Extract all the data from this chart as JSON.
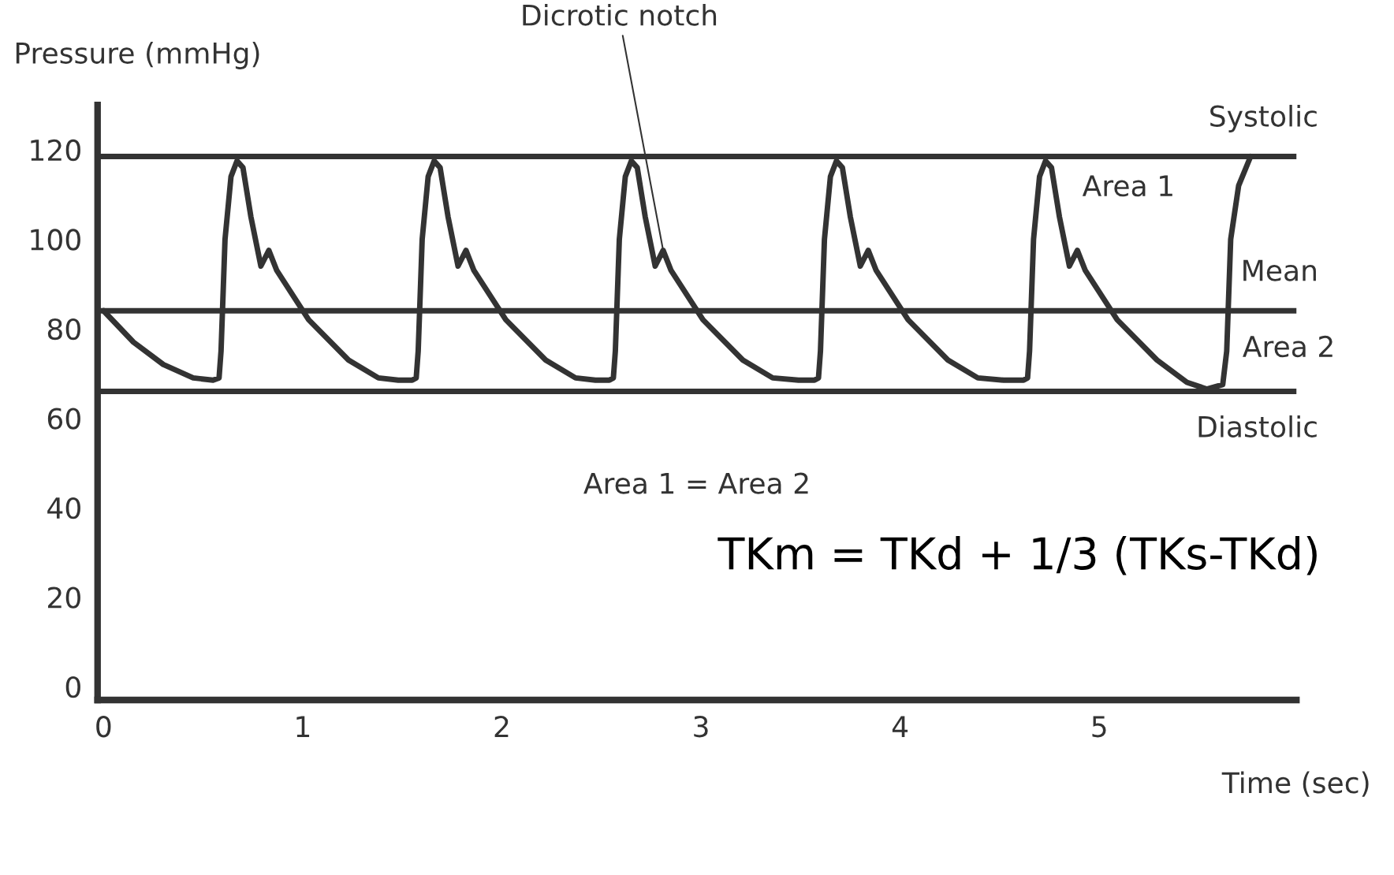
{
  "chart_data": {
    "type": "line",
    "ylabel": "Pressure (mmHg)",
    "xlabel": "Time (sec)",
    "xlim": [
      -0.03,
      5.99
    ],
    "xticks": [
      0,
      1,
      2,
      3,
      4,
      5
    ],
    "ylim": [
      -3,
      130
    ],
    "yticks": [
      0,
      20,
      40,
      60,
      80,
      100,
      120
    ],
    "grid": false,
    "marker": "none",
    "line_style": "solid",
    "series": [
      {
        "color": "#333333",
        "x": [
          0.0,
          0.15,
          0.3,
          0.45,
          0.55,
          0.58,
          0.59,
          0.61,
          0.64,
          0.67,
          0.7,
          0.74,
          0.79,
          0.83,
          0.87,
          1.03,
          1.23,
          1.38,
          1.48,
          1.55,
          1.57,
          1.58,
          1.6,
          1.63,
          1.66,
          1.69,
          1.73,
          1.78,
          1.82,
          1.86,
          2.02,
          2.22,
          2.37,
          2.47,
          2.54,
          2.56,
          2.57,
          2.59,
          2.62,
          2.65,
          2.68,
          2.72,
          2.77,
          2.81,
          2.85,
          3.01,
          3.21,
          3.36,
          3.49,
          3.57,
          3.59,
          3.6,
          3.62,
          3.65,
          3.68,
          3.71,
          3.75,
          3.8,
          3.84,
          3.88,
          4.04,
          4.24,
          4.39,
          4.52,
          4.62,
          4.64,
          4.65,
          4.67,
          4.7,
          4.73,
          4.76,
          4.8,
          4.85,
          4.89,
          4.93,
          5.09,
          5.29,
          5.44,
          5.54,
          5.62,
          5.64,
          5.66,
          5.7,
          5.76
        ],
        "values": [
          84,
          77,
          72,
          69,
          68.5,
          69,
          75,
          100,
          114,
          117.5,
          116,
          105,
          94,
          97.5,
          93,
          82,
          73,
          69,
          68.5,
          68.5,
          69,
          75,
          100,
          114,
          117.5,
          116,
          105,
          94,
          97.5,
          93,
          82,
          73,
          69,
          68.5,
          68.5,
          69,
          75,
          100,
          114,
          117.5,
          116,
          105,
          94,
          97.5,
          93,
          82,
          73,
          69,
          68.5,
          68.5,
          69,
          75,
          100,
          114,
          117.5,
          116,
          105,
          94,
          97.5,
          93,
          82,
          73,
          69,
          68.5,
          68.5,
          69,
          75,
          100,
          114,
          117.5,
          116,
          105,
          94,
          97.5,
          93,
          82,
          73,
          68,
          66.5,
          67.5,
          75,
          100,
          112,
          118.5
        ]
      }
    ],
    "ref_lines": [
      {
        "axis": "y",
        "value": 118.5,
        "label": "Systolic",
        "color": "#333333"
      },
      {
        "axis": "y",
        "value": 84,
        "label": "Mean",
        "color": "#333333"
      },
      {
        "axis": "y",
        "value": 66,
        "label": "Diastolic",
        "color": "#333333"
      }
    ],
    "annotations": [
      {
        "text": "Dicrotic notch",
        "x": 2.81,
        "y": 97.5
      },
      "Area 1",
      "Area 2",
      "Area 1 = Area 2",
      "TKm = TKd + 1/3 (TKs-TKd)"
    ]
  }
}
